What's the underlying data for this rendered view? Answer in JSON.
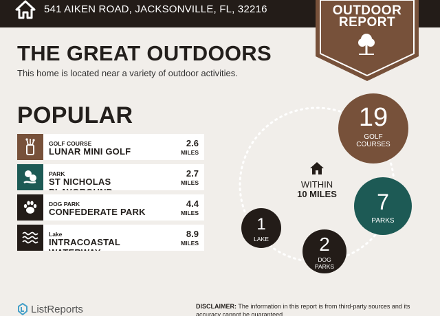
{
  "header": {
    "address": "541 AIKEN ROAD, JACKSONVILLE, FL, 32216",
    "icon": "house-icon"
  },
  "badge": {
    "line1": "OUTDOOR",
    "line2": "REPORT",
    "icon": "tree-icon",
    "color": "#77513a"
  },
  "title": "THE GREAT OUTDOORS",
  "subtitle": "This home is located near a variety of outdoor activities.",
  "popular": {
    "heading": "POPULAR",
    "items": [
      {
        "type": "GOLF COURSE",
        "name": "LUNAR MINI GOLF",
        "distance": "2.6",
        "unit": "MILES",
        "icon": "golf-bag-icon",
        "color": "#77513a"
      },
      {
        "type": "PARK",
        "name": "ST NICHOLAS PLAYGROUND",
        "distance": "2.7",
        "unit": "MILES",
        "icon": "park-icon",
        "color": "#1d5a55"
      },
      {
        "type": "DOG PARK",
        "name": "CONFEDERATE PARK",
        "distance": "4.4",
        "unit": "MILES",
        "icon": "paw-icon",
        "color": "#231c18"
      },
      {
        "type": "Lake",
        "name": "INTRACOASTAL WATERWAY",
        "distance": "8.9",
        "unit": "MILES",
        "icon": "waves-icon",
        "color": "#231c18"
      }
    ]
  },
  "summary": {
    "within_line1": "WITHIN",
    "within_line2": "10 MILES",
    "icon": "house-icon",
    "stats": [
      {
        "count": "19",
        "label1": "GOLF",
        "label2": "COURSES",
        "color": "#77513a"
      },
      {
        "count": "7",
        "label1": "PARKS",
        "label2": "",
        "color": "#1d5a55"
      },
      {
        "count": "2",
        "label1": "DOG",
        "label2": "PARKS",
        "color": "#231c18"
      },
      {
        "count": "1",
        "label1": "LAKE",
        "label2": "",
        "color": "#231c18"
      }
    ]
  },
  "footer": {
    "logo_text": "ListReports",
    "disclaimer_label": "DISCLAIMER:",
    "disclaimer_text": " The information in this report is from third-party sources and its accuracy cannot be guaranteed."
  }
}
